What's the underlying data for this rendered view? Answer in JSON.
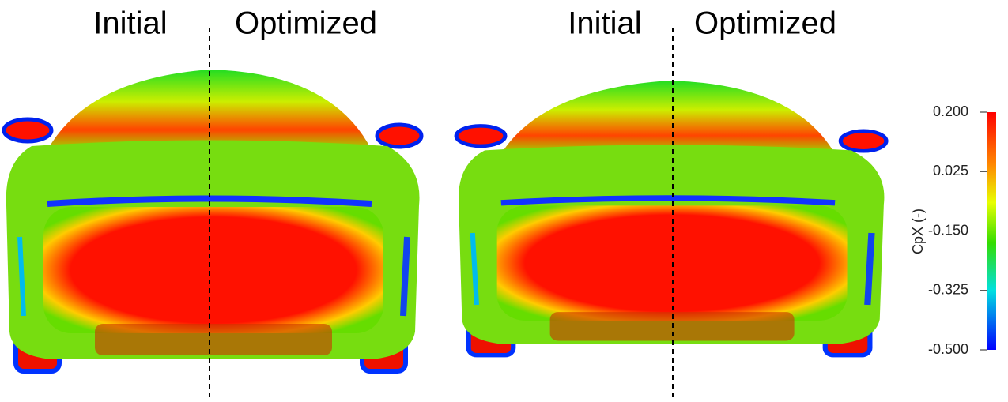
{
  "panels": [
    {
      "left_label": "Initial",
      "right_label": "Optimized"
    },
    {
      "left_label": "Initial",
      "right_label": "Optimized"
    }
  ],
  "colorbar": {
    "title": "CpX (-)",
    "range": [
      -0.5,
      0.2
    ],
    "ticks": [
      {
        "value": 0.2,
        "label": "0.200"
      },
      {
        "value": 0.025,
        "label": "0.025"
      },
      {
        "value": -0.15,
        "label": "-0.150"
      },
      {
        "value": -0.325,
        "label": "-0.325"
      },
      {
        "value": -0.5,
        "label": "-0.500"
      }
    ]
  }
}
